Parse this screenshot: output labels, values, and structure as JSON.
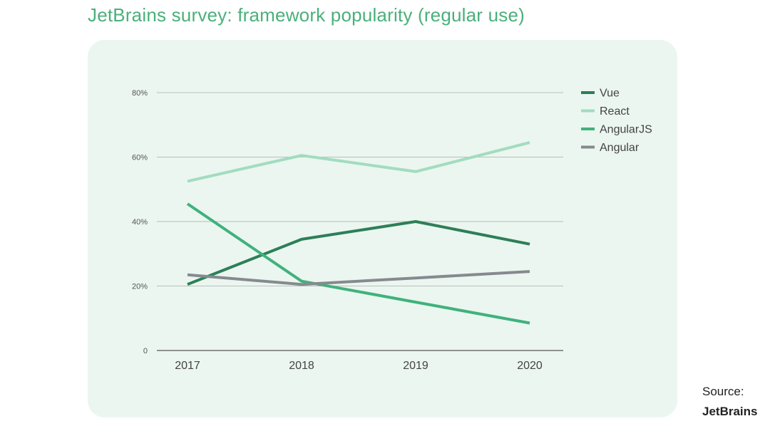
{
  "title": "JetBrains survey: framework popularity (regular use)",
  "source": {
    "label": "Source:",
    "name": "JetBrains"
  },
  "colors": {
    "title": "#4ab07a",
    "card_background": "#ebf6f0",
    "gridline": "#b9bebb",
    "axis": "#555555"
  },
  "chart_data": {
    "type": "line",
    "x": [
      2017,
      2018,
      2019,
      2020
    ],
    "ylim": [
      0,
      80
    ],
    "y_ticks": [
      {
        "value": 0,
        "label": "0"
      },
      {
        "value": 20,
        "label": "20%"
      },
      {
        "value": 40,
        "label": "40%"
      },
      {
        "value": 60,
        "label": "60%"
      },
      {
        "value": 80,
        "label": "80%"
      }
    ],
    "xlabel": "",
    "ylabel": "",
    "grid": true,
    "legend_position": "right",
    "series": [
      {
        "name": "Vue",
        "color": "#2d7f57",
        "values": [
          20.5,
          34.5,
          40,
          33
        ]
      },
      {
        "name": "React",
        "color": "#a2dcbf",
        "values": [
          52.5,
          60.5,
          55.5,
          64.5
        ]
      },
      {
        "name": "AngularJS",
        "color": "#3fb27c",
        "values": [
          45.5,
          21.5,
          15,
          8.5
        ]
      },
      {
        "name": "Angular",
        "color": "#868a8f",
        "values": [
          23.5,
          20.5,
          22.5,
          24.5
        ]
      }
    ]
  }
}
